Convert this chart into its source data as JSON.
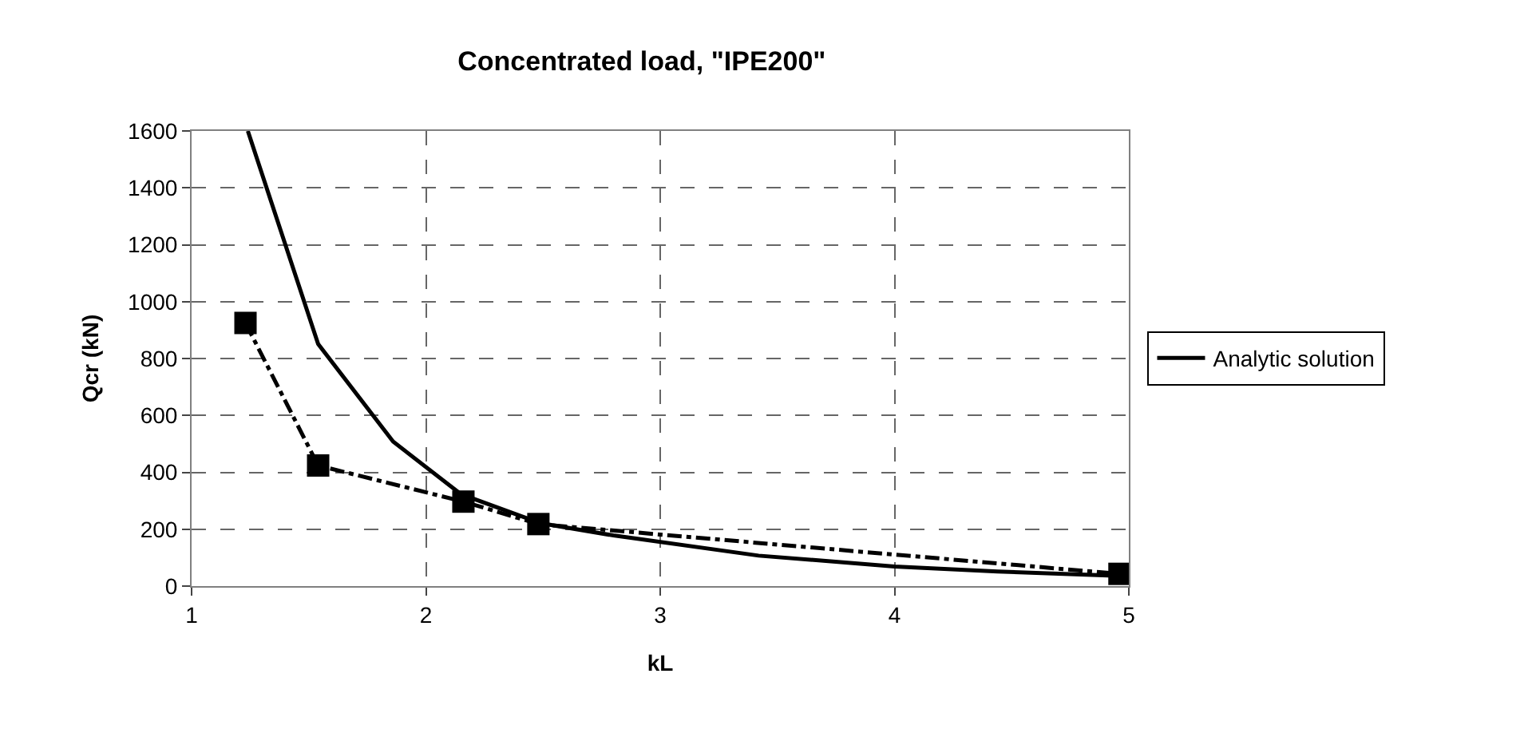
{
  "chart_data": {
    "type": "line",
    "title": "Concentrated load, \"IPE200\"",
    "xlabel": "kL",
    "ylabel": "Qcr (kN)",
    "series": [
      {
        "name": "Analytic solution",
        "color": "#000000",
        "line_style": "solid",
        "marker": "none",
        "x": [
          1.24,
          1.54,
          1.86,
          2.15,
          2.49,
          2.8,
          3.42,
          4.0,
          4.44,
          4.96
        ],
        "values": [
          1600,
          851,
          508,
          323,
          221,
          178,
          107,
          69,
          51,
          36
        ]
      },
      {
        "color": "#000000",
        "line_style": "dashed",
        "marker": "square",
        "x": [
          1.23,
          1.54,
          2.16,
          2.48,
          4.96
        ],
        "values": [
          925,
          424,
          297,
          218,
          43
        ]
      }
    ],
    "xlim": [
      1,
      5
    ],
    "xticks": [
      1,
      2,
      3,
      4,
      5
    ],
    "ylim": [
      0,
      1600
    ],
    "yticks": [
      0,
      200,
      400,
      600,
      800,
      1000,
      1200,
      1400,
      1600
    ],
    "grid": true,
    "legend": "right"
  }
}
